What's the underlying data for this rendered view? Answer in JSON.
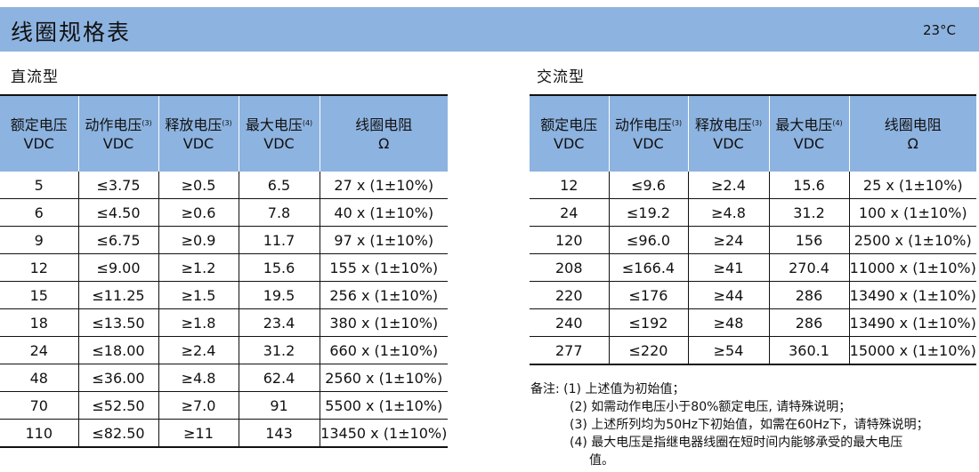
{
  "header": {
    "title": "线圈规格表",
    "temperature": "23°C"
  },
  "dc": {
    "section_title": "直流型",
    "headers": [
      {
        "name": "额定电压",
        "unit": "VDC",
        "note": ""
      },
      {
        "name": "动作电压",
        "unit": "VDC",
        "note": "(3)"
      },
      {
        "name": "释放电压",
        "unit": "VDC",
        "note": "(3)"
      },
      {
        "name": "最大电压",
        "unit": "VDC",
        "note": "(4)"
      },
      {
        "name": "线圈电阻",
        "unit": "Ω",
        "note": ""
      }
    ],
    "rows": [
      [
        "5",
        "≤3.75",
        "≥0.5",
        "6.5",
        "27 x (1±10%)"
      ],
      [
        "6",
        "≤4.50",
        "≥0.6",
        "7.8",
        "40 x (1±10%)"
      ],
      [
        "9",
        "≤6.75",
        "≥0.9",
        "11.7",
        "97 x (1±10%)"
      ],
      [
        "12",
        "≤9.00",
        "≥1.2",
        "15.6",
        "155 x (1±10%)"
      ],
      [
        "15",
        "≤11.25",
        "≥1.5",
        "19.5",
        "256 x (1±10%)"
      ],
      [
        "18",
        "≤13.50",
        "≥1.8",
        "23.4",
        "380 x (1±10%)"
      ],
      [
        "24",
        "≤18.00",
        "≥2.4",
        "31.2",
        "660 x (1±10%)"
      ],
      [
        "48",
        "≤36.00",
        "≥4.8",
        "62.4",
        "2560 x (1±10%)"
      ],
      [
        "70",
        "≤52.50",
        "≥7.0",
        "91",
        "5500 x (1±10%)"
      ],
      [
        "110",
        "≤82.50",
        "≥11",
        "143",
        "13450 x (1±10%)"
      ]
    ]
  },
  "ac": {
    "section_title": "交流型",
    "headers": [
      {
        "name": "额定电压",
        "unit": "VDC",
        "note": ""
      },
      {
        "name": "动作电压",
        "unit": "VDC",
        "note": "(3)"
      },
      {
        "name": "释放电压",
        "unit": "VDC",
        "note": "(3)"
      },
      {
        "name": "最大电压",
        "unit": "VDC",
        "note": "(4)"
      },
      {
        "name": "线圈电阻",
        "unit": "Ω",
        "note": ""
      }
    ],
    "rows": [
      [
        "12",
        "≤9.6",
        "≥2.4",
        "15.6",
        "25 x (1±10%)"
      ],
      [
        "24",
        "≤19.2",
        "≥4.8",
        "31.2",
        "100 x (1±10%)"
      ],
      [
        "120",
        "≤96.0",
        "≥24",
        "156",
        "2500 x (1±10%)"
      ],
      [
        "208",
        "≤166.4",
        "≥41",
        "270.4",
        "11000 x (1±10%)"
      ],
      [
        "220",
        "≤176",
        "≥44",
        "286",
        "13490 x (1±10%)"
      ],
      [
        "240",
        "≤192",
        "≥48",
        "286",
        "13490 x (1±10%)"
      ],
      [
        "277",
        "≤220",
        "≥54",
        "360.1",
        "15000 x (1±10%)"
      ]
    ]
  },
  "notes": {
    "label": "备注:",
    "items": [
      "(1) 上述值为初始值；",
      "(2) 如需动作电压小于80%额定电压, 请特殊说明；",
      "(3) 上述所列均为50Hz下初始值，如需在60Hz下，请特殊说明；",
      "(4) 最大电压是指继电器线圈在短时间内能够承受的最大电压"
    ],
    "continuation": "值。"
  }
}
